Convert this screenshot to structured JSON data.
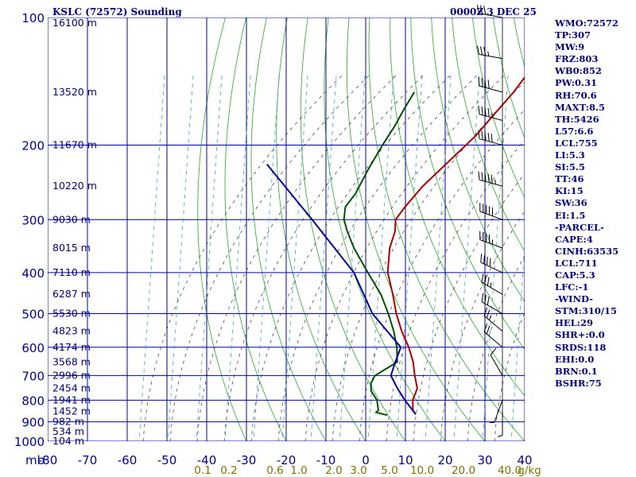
{
  "header": {
    "station": "KSLC (72572) Sounding",
    "time": "0000Z  3 DEC 25"
  },
  "indices": [
    "WMO:72572",
    "TP:307",
    "MW:9",
    "FRZ:803",
    "WB0:852",
    "PW:0.31",
    "RH:70.6",
    "MAXT:8.5",
    "TH:5426",
    "L57:6.6",
    "LCL:755",
    "LI:5.3",
    "SI:5.5",
    "TT:46",
    "KI:15",
    "SW:36",
    "EI:1.5",
    "-PARCEL-",
    "CAPE:4",
    "CINH:63535",
    "LCL:711",
    "CAP:5.3",
    "LFC:-1",
    "-WIND-",
    "STM:310/15",
    "HEL:29",
    "SHR+:0.0",
    "SRDS:118",
    "EHI:0.0",
    "BRN:0.1",
    "BSHR:75"
  ],
  "chart_data": {
    "type": "line",
    "title": "KSLC (72572) Sounding",
    "subtitle": "0000Z  3 DEC 25",
    "xlabel": "mb",
    "xlim": [
      -80,
      40
    ],
    "ylim": [
      1000,
      100
    ],
    "x_ticks": [
      -80,
      -70,
      -60,
      -50,
      -40,
      -30,
      -20,
      -10,
      0,
      10,
      20,
      30,
      40
    ],
    "x_tick_labels": [
      "-80",
      "-70",
      "-60",
      "-50",
      "-40",
      "-30",
      "-20",
      "-10",
      "0",
      "10",
      "20",
      "30",
      "40"
    ],
    "y_ticks": [
      100,
      200,
      300,
      400,
      500,
      600,
      700,
      800,
      900,
      1000
    ],
    "y_tick_labels": [
      "100",
      "200",
      "300",
      "400",
      "500",
      "600",
      "700",
      "800",
      "900",
      "1000"
    ],
    "height_labels": [
      {
        "p": 103,
        "label": "16100 m"
      },
      {
        "p": 150,
        "label": "13520 m"
      },
      {
        "p": 200,
        "label": "11670 m"
      },
      {
        "p": 250,
        "label": "10220 m"
      },
      {
        "p": 300,
        "label": "9030 m"
      },
      {
        "p": 350,
        "label": "8015 m"
      },
      {
        "p": 400,
        "label": "7110 m"
      },
      {
        "p": 450,
        "label": "6287 m"
      },
      {
        "p": 500,
        "label": "5530 m"
      },
      {
        "p": 550,
        "label": "4823 m"
      },
      {
        "p": 600,
        "label": "4174 m"
      },
      {
        "p": 650,
        "label": "3568 m"
      },
      {
        "p": 700,
        "label": "2996 m"
      },
      {
        "p": 750,
        "label": "2454 m"
      },
      {
        "p": 800,
        "label": "1941 m"
      },
      {
        "p": 850,
        "label": "1452 m"
      },
      {
        "p": 900,
        "label": "982 m"
      },
      {
        "p": 950,
        "label": "534 m"
      },
      {
        "p": 1000,
        "label": "104 m"
      }
    ],
    "mixing_ratio_labels": [
      "0.1",
      "0.2",
      "0.6",
      "1.0",
      "2.0",
      "3.0",
      "5.0",
      "10.0",
      "20.0",
      "40.0",
      "g/kg"
    ],
    "series": [
      {
        "name": "temperature",
        "color": "#b00000",
        "points": [
          [
            100,
            -59
          ],
          [
            115,
            -58
          ],
          [
            130,
            -57
          ],
          [
            150,
            -55
          ],
          [
            170,
            -54
          ],
          [
            190,
            -53
          ],
          [
            220,
            -53
          ],
          [
            250,
            -53
          ],
          [
            280,
            -52
          ],
          [
            300,
            -51
          ],
          [
            320,
            -48
          ],
          [
            350,
            -45
          ],
          [
            400,
            -39
          ],
          [
            450,
            -32
          ],
          [
            500,
            -26
          ],
          [
            550,
            -20
          ],
          [
            600,
            -14
          ],
          [
            650,
            -9
          ],
          [
            700,
            -5
          ],
          [
            750,
            -1
          ],
          [
            800,
            1
          ],
          [
            845,
            3.7
          ],
          [
            864,
            5.5
          ]
        ]
      },
      {
        "name": "dewpoint",
        "color": "#005000",
        "points": [
          [
            150,
            -80
          ],
          [
            165,
            -78
          ],
          [
            180,
            -76
          ],
          [
            200,
            -74
          ],
          [
            230,
            -71
          ],
          [
            260,
            -68
          ],
          [
            280,
            -67
          ],
          [
            300,
            -64
          ],
          [
            320,
            -60
          ],
          [
            350,
            -54
          ],
          [
            400,
            -44
          ],
          [
            450,
            -35
          ],
          [
            500,
            -28
          ],
          [
            550,
            -22
          ],
          [
            600,
            -17
          ],
          [
            650,
            -13
          ],
          [
            675,
            -14
          ],
          [
            700,
            -15
          ],
          [
            730,
            -14
          ],
          [
            760,
            -12
          ],
          [
            800,
            -8
          ],
          [
            845,
            -5
          ],
          [
            855,
            -5
          ],
          [
            868,
            -1.5
          ]
        ]
      },
      {
        "name": "parcel",
        "color": "#0000a0",
        "points": [
          [
            864,
            5.5
          ],
          [
            800,
            -1
          ],
          [
            750,
            -6
          ],
          [
            700,
            -11
          ],
          [
            650,
            -13.5
          ],
          [
            600,
            -16
          ],
          [
            500,
            -32
          ],
          [
            400,
            -47.5
          ],
          [
            300,
            -72
          ],
          [
            222,
            -98
          ]
        ]
      }
    ],
    "wind_profile": [
      {
        "p": 100,
        "dir": 280,
        "spd": 30
      },
      {
        "p": 125,
        "dir": 280,
        "spd": 35
      },
      {
        "p": 150,
        "dir": 285,
        "spd": 40
      },
      {
        "p": 175,
        "dir": 285,
        "spd": 45
      },
      {
        "p": 200,
        "dir": 285,
        "spd": 50
      },
      {
        "p": 250,
        "dir": 285,
        "spd": 55
      },
      {
        "p": 300,
        "dir": 290,
        "spd": 50
      },
      {
        "p": 350,
        "dir": 290,
        "spd": 45
      },
      {
        "p": 400,
        "dir": 295,
        "spd": 40
      },
      {
        "p": 450,
        "dir": 300,
        "spd": 35
      },
      {
        "p": 500,
        "dir": 300,
        "spd": 30
      },
      {
        "p": 550,
        "dir": 310,
        "spd": 25
      },
      {
        "p": 600,
        "dir": 310,
        "spd": 20
      },
      {
        "p": 700,
        "dir": 330,
        "spd": 10
      },
      {
        "p": 800,
        "dir": 200,
        "spd": 5
      },
      {
        "p": 850,
        "dir": 180,
        "spd": 5
      }
    ]
  }
}
